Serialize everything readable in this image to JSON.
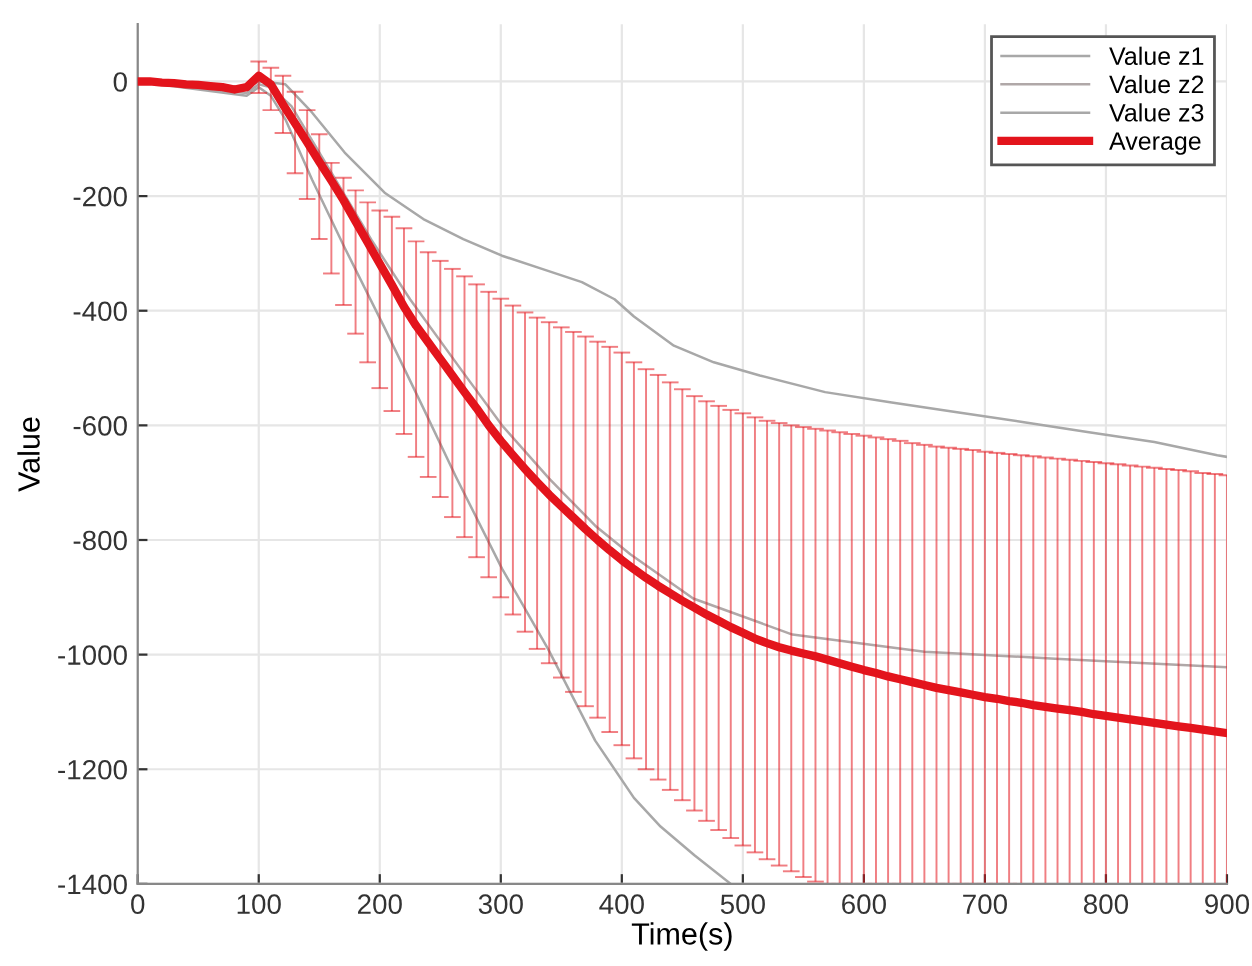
{
  "chart_data": {
    "type": "line",
    "xlabel": "Time(s)",
    "ylabel": "Value",
    "xlim": [
      0,
      900
    ],
    "ylim": [
      -1400,
      100
    ],
    "xticks": [
      0,
      100,
      200,
      300,
      400,
      500,
      600,
      700,
      800,
      900
    ],
    "yticks": [
      -1400,
      -1200,
      -1000,
      -800,
      -600,
      -400,
      -200,
      0
    ],
    "grid": true,
    "legend": "top right",
    "series": [
      {
        "name": "Value z1",
        "color": "#a8a8a8",
        "x": [
          0,
          90,
          100,
          110,
          122,
          144,
          171,
          204,
          236,
          269,
          301,
          334,
          367,
          394,
          410,
          443,
          476,
          514,
          568,
          623,
          677,
          731,
          786,
          840,
          892,
          900
        ],
        "values": [
          0,
          -10,
          0,
          -2,
          -5,
          -54,
          -124,
          -194,
          -240,
          -275,
          -304,
          -327,
          -350,
          -380,
          -410,
          -461,
          -490,
          -513,
          -542,
          -560,
          -577,
          -594,
          -612,
          -629,
          -652,
          -655
        ]
      },
      {
        "name": "Value z2",
        "color": "#b0a8a8",
        "x": [
          0,
          90,
          100,
          110,
          127,
          160,
          193,
          225,
          269,
          301,
          340,
          378,
          407,
          459,
          541,
          650,
          758,
          892,
          900
        ],
        "values": [
          0,
          -20,
          -5,
          -10,
          -43,
          -159,
          -276,
          -380,
          -508,
          -600,
          -693,
          -775,
          -825,
          -902,
          -965,
          -995,
          -1007,
          -1021,
          -1022
        ]
      },
      {
        "name": "Value z3",
        "color": "#a8a8a8",
        "x": [
          0,
          90,
          100,
          110,
          122,
          144,
          171,
          204,
          236,
          263,
          301,
          339,
          378,
          410,
          432,
          460,
          490
        ],
        "values": [
          0,
          -25,
          -10,
          -25,
          -66,
          -171,
          -290,
          -430,
          -570,
          -690,
          -850,
          -990,
          -1150,
          -1250,
          -1300,
          -1350,
          -1400
        ]
      },
      {
        "name": "Average",
        "color": "#e3141c",
        "x": [
          0,
          10,
          20,
          30,
          40,
          50,
          60,
          70,
          80,
          90,
          100,
          110,
          120,
          130,
          140,
          150,
          160,
          170,
          180,
          190,
          200,
          210,
          220,
          230,
          240,
          250,
          260,
          270,
          280,
          290,
          300,
          310,
          320,
          330,
          340,
          350,
          360,
          370,
          380,
          390,
          400,
          410,
          420,
          430,
          440,
          450,
          460,
          470,
          480,
          490,
          500,
          510,
          520,
          530,
          540,
          550,
          560,
          570,
          580,
          590,
          600,
          610,
          620,
          630,
          640,
          650,
          660,
          670,
          680,
          690,
          700,
          710,
          720,
          730,
          740,
          750,
          760,
          770,
          780,
          790,
          800,
          810,
          820,
          830,
          840,
          850,
          860,
          870,
          880,
          890,
          900
        ],
        "values": [
          0,
          0,
          -2,
          -3,
          -5,
          -6,
          -8,
          -10,
          -14,
          -10,
          10,
          -5,
          -40,
          -73,
          -106,
          -140,
          -173,
          -207,
          -244,
          -281,
          -318,
          -355,
          -393,
          -426,
          -455,
          -484,
          -513,
          -542,
          -570,
          -600,
          -627,
          -652,
          -676,
          -699,
          -721,
          -741,
          -761,
          -781,
          -800,
          -818,
          -835,
          -851,
          -866,
          -880,
          -893,
          -906,
          -918,
          -930,
          -941,
          -952,
          -962,
          -972,
          -980,
          -987,
          -993,
          -998,
          -1003,
          -1009,
          -1015,
          -1021,
          -1027,
          -1032,
          -1038,
          -1043,
          -1048,
          -1053,
          -1058,
          -1062,
          -1066,
          -1070,
          -1074,
          -1077,
          -1081,
          -1084,
          -1088,
          -1091,
          -1094,
          -1097,
          -1100,
          -1104,
          -1107,
          -1110,
          -1113,
          -1116,
          -1119,
          -1122,
          -1125,
          -1128,
          -1131,
          -1134,
          -1137
        ],
        "errors": [
          null,
          null,
          null,
          null,
          null,
          null,
          null,
          null,
          null,
          null,
          [
            -20,
            35
          ],
          [
            -50,
            24
          ],
          [
            -90,
            10
          ],
          [
            -160,
            -18
          ],
          [
            -205,
            -50
          ],
          [
            -275,
            -92
          ],
          [
            -335,
            -142
          ],
          [
            -390,
            -168
          ],
          [
            -440,
            -190
          ],
          [
            -490,
            -211
          ],
          [
            -535,
            -225
          ],
          [
            -575,
            -236
          ],
          [
            -615,
            -256
          ],
          [
            -655,
            -279
          ],
          [
            -690,
            -298
          ],
          [
            -725,
            -313
          ],
          [
            -760,
            -327
          ],
          [
            -795,
            -340
          ],
          [
            -830,
            -354
          ],
          [
            -865,
            -367
          ],
          [
            -900,
            -379
          ],
          [
            -930,
            -391
          ],
          [
            -960,
            -403
          ],
          [
            -990,
            -412
          ],
          [
            -1015,
            -420
          ],
          [
            -1040,
            -429
          ],
          [
            -1065,
            -437
          ],
          [
            -1090,
            -445
          ],
          [
            -1110,
            -454
          ],
          [
            -1135,
            -463
          ],
          [
            -1158,
            -473
          ],
          [
            -1181,
            -490
          ],
          [
            -1200,
            -502
          ],
          [
            -1218,
            -512
          ],
          [
            -1236,
            -525
          ],
          [
            -1254,
            -537
          ],
          [
            -1272,
            -549
          ],
          [
            -1290,
            -558
          ],
          [
            -1306,
            -566
          ],
          [
            -1320,
            -573
          ],
          [
            -1333,
            -579
          ],
          [
            -1345,
            -586
          ],
          [
            -1357,
            -592
          ],
          [
            -1368,
            -596
          ],
          [
            -1378,
            -600
          ],
          [
            -1388,
            -603
          ],
          [
            -1396,
            -606
          ],
          [
            -1400,
            -609
          ],
          [
            -1400,
            -612
          ],
          [
            -1400,
            -615
          ],
          [
            -1400,
            -618
          ],
          [
            -1400,
            -621
          ],
          [
            -1400,
            -624
          ],
          [
            -1400,
            -627
          ],
          [
            -1400,
            -631
          ],
          [
            -1400,
            -634
          ],
          [
            -1400,
            -637
          ],
          [
            -1400,
            -639
          ],
          [
            -1400,
            -641
          ],
          [
            -1400,
            -643
          ],
          [
            -1400,
            -646
          ],
          [
            -1400,
            -648
          ],
          [
            -1400,
            -650
          ],
          [
            -1400,
            -652
          ],
          [
            -1400,
            -654
          ],
          [
            -1400,
            -656
          ],
          [
            -1400,
            -658
          ],
          [
            -1400,
            -660
          ],
          [
            -1400,
            -662
          ],
          [
            -1400,
            -664
          ],
          [
            -1400,
            -666
          ],
          [
            -1400,
            -668
          ],
          [
            -1400,
            -670
          ],
          [
            -1400,
            -672
          ],
          [
            -1400,
            -674
          ],
          [
            -1400,
            -676
          ],
          [
            -1400,
            -678
          ],
          [
            -1400,
            -680
          ],
          [
            -1400,
            -683
          ],
          [
            -1400,
            -685
          ],
          [
            -1400,
            -687
          ]
        ]
      }
    ]
  }
}
